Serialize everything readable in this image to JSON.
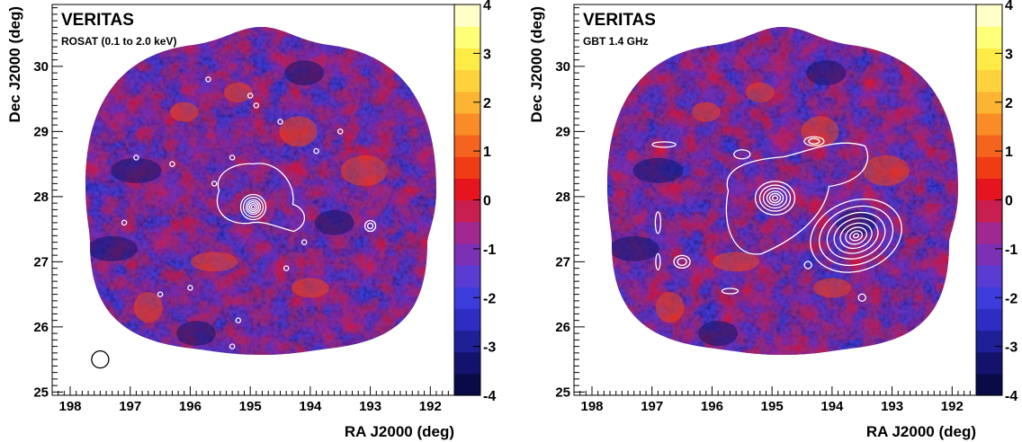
{
  "chart_data": [
    {
      "type": "heatmap",
      "title": "VERITAS",
      "subtitle": "ROSAT (0.1 to 2.0 keV)",
      "xlabel": "RA J2000 (deg)",
      "ylabel": "Dec J2000 (deg)",
      "xlim": [
        198.3,
        191.6
      ],
      "ylim": [
        24.95,
        30.95
      ],
      "x_ticks": [
        198,
        197,
        196,
        195,
        194,
        193,
        192
      ],
      "y_ticks": [
        25,
        26,
        27,
        28,
        29,
        30
      ],
      "x_reversed": true,
      "colorbar": {
        "min": -4,
        "max": 4,
        "ticks": [
          4,
          3,
          2,
          1,
          0,
          -1,
          -2,
          -3,
          -4
        ]
      },
      "overlay": "contours",
      "marker": "PSF circle",
      "marker_center": [
        197.5,
        25.5
      ],
      "map_center": [
        194.95,
        27.95
      ]
    },
    {
      "type": "heatmap",
      "title": "VERITAS",
      "subtitle": "GBT 1.4 GHz",
      "xlabel": "RA J2000 (deg)",
      "ylabel": "Dec J2000 (deg)",
      "xlim": [
        198.3,
        191.6
      ],
      "ylim": [
        24.95,
        30.95
      ],
      "x_ticks": [
        198,
        197,
        196,
        195,
        194,
        193,
        192
      ],
      "y_ticks": [
        25,
        26,
        27,
        28,
        29,
        30
      ],
      "x_reversed": true,
      "colorbar": {
        "min": -4,
        "max": 4,
        "ticks": [
          4,
          3,
          2,
          1,
          0,
          -1,
          -2,
          -3,
          -4
        ]
      },
      "overlay": "contours",
      "map_center": [
        194.95,
        27.95
      ]
    }
  ],
  "colors": {
    "palette": [
      "#0a0a46",
      "#13136e",
      "#1f1f96",
      "#2d2dc4",
      "#3c3cdc",
      "#5a3cd2",
      "#7c30b4",
      "#a02890",
      "#c81e50",
      "#e6141e",
      "#f03c14",
      "#f5641e",
      "#fa8c28",
      "#fcb432",
      "#fed23c",
      "#ffeb46",
      "#ffff78",
      "#ffffc8"
    ],
    "contour": "#ffffff",
    "axis": "#000000"
  }
}
